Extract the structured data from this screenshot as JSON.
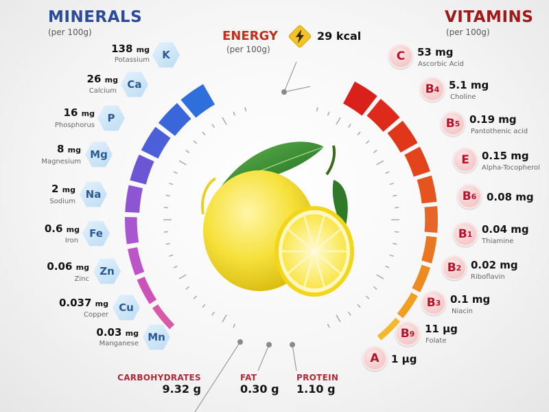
{
  "minerals": {
    "title": "MINERALS",
    "subtitle": "(per 100g)",
    "items": [
      {
        "value": "138",
        "unit": "mg",
        "name": "Potassium",
        "symbol": "K"
      },
      {
        "value": "26",
        "unit": "mg",
        "name": "Calcium",
        "symbol": "Ca"
      },
      {
        "value": "16",
        "unit": "mg",
        "name": "Phosphorus",
        "symbol": "P"
      },
      {
        "value": "8",
        "unit": "mg",
        "name": "Magnesium",
        "symbol": "Mg"
      },
      {
        "value": "2",
        "unit": "mg",
        "name": "Sodium",
        "symbol": "Na"
      },
      {
        "value": "0.6",
        "unit": "mg",
        "name": "Iron",
        "symbol": "Fe"
      },
      {
        "value": "0.06",
        "unit": "mg",
        "name": "Zinc",
        "symbol": "Zn"
      },
      {
        "value": "0.037",
        "unit": "mg",
        "name": "Copper",
        "symbol": "Cu"
      },
      {
        "value": "0.03",
        "unit": "mg",
        "name": "Manganese",
        "symbol": "Mn"
      }
    ]
  },
  "vitamins": {
    "title": "VITAMINS",
    "subtitle": "(per 100g)",
    "items": [
      {
        "value": "53",
        "unit": "mg",
        "name": "Ascorbic Acid",
        "letter": "C",
        "sub": ""
      },
      {
        "value": "5.1",
        "unit": "mg",
        "name": "Choline",
        "letter": "B",
        "sub": "4"
      },
      {
        "value": "0.19",
        "unit": "mg",
        "name": "Pantothenic acid",
        "letter": "B",
        "sub": "5"
      },
      {
        "value": "0.15",
        "unit": "mg",
        "name": "Alpha-Tocopherol",
        "letter": "E",
        "sub": ""
      },
      {
        "value": "0.08",
        "unit": "mg",
        "name": "",
        "letter": "B",
        "sub": "6"
      },
      {
        "value": "0.04",
        "unit": "mg",
        "name": "Thiamine",
        "letter": "B",
        "sub": "1"
      },
      {
        "value": "0.02",
        "unit": "mg",
        "name": "Riboflavin",
        "letter": "B",
        "sub": "2"
      },
      {
        "value": "0.1",
        "unit": "mg",
        "name": "Niacin",
        "letter": "B",
        "sub": "3"
      },
      {
        "value": "11",
        "unit": "µg",
        "name": "Folate",
        "letter": "B",
        "sub": "9"
      },
      {
        "value": "1",
        "unit": "µg",
        "name": "",
        "letter": "A",
        "sub": ""
      }
    ]
  },
  "energy": {
    "title": "ENERGY",
    "subtitle": "(per 100g)",
    "value": "29 kcal",
    "icon": "lightning-icon"
  },
  "macros": [
    {
      "title": "CARBOHYDRATES",
      "value": "9.32",
      "unit": "g"
    },
    {
      "title": "FAT",
      "value": "0.30",
      "unit": "g"
    },
    {
      "title": "PROTEIN",
      "value": "1.10",
      "unit": "g"
    }
  ],
  "illustration": "lemon-illustration",
  "colors": {
    "minerals_title": "#2a4a9a",
    "vitamins_title": "#a01818",
    "energy_title": "#c2301c",
    "macro_title": "#b02838"
  }
}
